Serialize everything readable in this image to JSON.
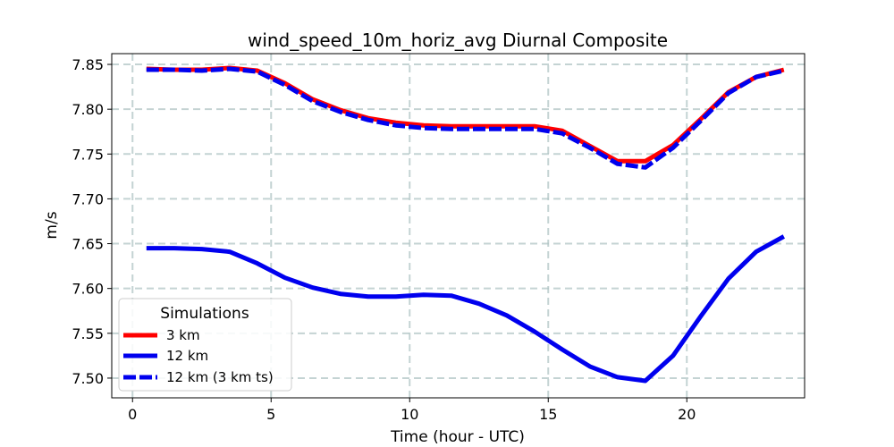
{
  "chart_data": {
    "type": "line",
    "title": "wind_speed_10m_horiz_avg Diurnal Composite",
    "xlabel": "Time (hour - UTC)",
    "ylabel": "m/s",
    "xlim": [
      -0.75,
      24.25
    ],
    "ylim": [
      7.478,
      7.862
    ],
    "xticks": [
      0,
      5,
      10,
      15,
      20
    ],
    "yticks": [
      7.5,
      7.55,
      7.6,
      7.65,
      7.7,
      7.75,
      7.8,
      7.85
    ],
    "grid": true,
    "legend": {
      "title": "Simulations",
      "position": "lower-left"
    },
    "x": [
      0.5,
      1.5,
      2.5,
      3.5,
      4.5,
      5.5,
      6.5,
      7.5,
      8.5,
      9.5,
      10.5,
      11.5,
      12.5,
      13.5,
      14.5,
      15.5,
      16.5,
      17.5,
      18.5,
      19.5,
      20.5,
      21.5,
      22.5,
      23.5
    ],
    "series": [
      {
        "name": "3 km",
        "color": "#ff0000",
        "style": "solid",
        "values": [
          7.845,
          7.844,
          7.844,
          7.846,
          7.843,
          7.829,
          7.811,
          7.799,
          7.79,
          7.785,
          7.782,
          7.781,
          7.781,
          7.781,
          7.781,
          7.776,
          7.759,
          7.742,
          7.742,
          7.76,
          7.789,
          7.819,
          7.836,
          7.844
        ]
      },
      {
        "name": "12 km",
        "color": "#0000ee",
        "style": "solid",
        "values": [
          7.645,
          7.645,
          7.644,
          7.641,
          7.628,
          7.612,
          7.601,
          7.594,
          7.591,
          7.591,
          7.593,
          7.592,
          7.583,
          7.57,
          7.552,
          7.532,
          7.513,
          7.501,
          7.497,
          7.525,
          7.569,
          7.611,
          7.641,
          7.658
        ]
      },
      {
        "name": "12 km (3 km ts)",
        "color": "#0000ee",
        "style": "dashed",
        "values": [
          7.844,
          7.844,
          7.843,
          7.845,
          7.842,
          7.827,
          7.809,
          7.797,
          7.788,
          7.782,
          7.779,
          7.778,
          7.778,
          7.778,
          7.778,
          7.773,
          7.757,
          7.739,
          7.735,
          7.757,
          7.787,
          7.818,
          7.836,
          7.843
        ]
      }
    ]
  }
}
